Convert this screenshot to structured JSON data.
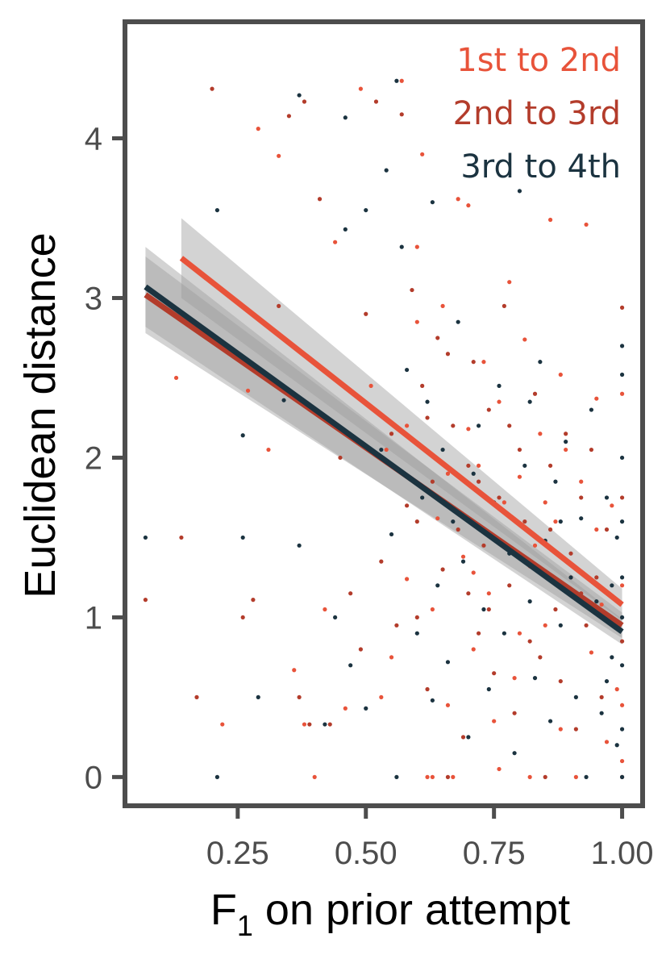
{
  "chart_data": {
    "type": "scatter",
    "xlabel": "F",
    "xlabel_subscript": "1",
    "xlabel_rest": " on prior attempt",
    "ylabel": "Euclidean distance",
    "xlim": [
      0.03,
      1.04
    ],
    "ylim": [
      -0.18,
      4.73
    ],
    "x_ticks": [
      0.25,
      0.5,
      0.75,
      1.0
    ],
    "x_tick_labels": [
      "0.25",
      "0.50",
      "0.75",
      "1.00"
    ],
    "y_ticks": [
      0,
      1,
      2,
      3,
      4
    ],
    "y_tick_labels": [
      "0",
      "1",
      "2",
      "3",
      "4"
    ],
    "grid": false,
    "legend_placement": "top-right",
    "series": [
      {
        "name": "1st to 2nd",
        "color": "#e8533a",
        "fit": {
          "x": [
            0.14,
            1.0
          ],
          "y": [
            3.25,
            1.08
          ],
          "ci_low": [
            3.0,
            0.98
          ],
          "ci_high": [
            3.5,
            1.18
          ]
        },
        "points": [
          [
            0.13,
            2.5
          ],
          [
            0.22,
            0.33
          ],
          [
            0.27,
            2.42
          ],
          [
            0.29,
            4.06
          ],
          [
            0.31,
            2.05
          ],
          [
            0.33,
            3.89
          ],
          [
            0.36,
            0.67
          ],
          [
            0.38,
            0.33
          ],
          [
            0.4,
            0.0
          ],
          [
            0.42,
            1.05
          ],
          [
            0.44,
            3.35
          ],
          [
            0.46,
            0.43
          ],
          [
            0.49,
            4.31
          ],
          [
            0.51,
            2.45
          ],
          [
            0.53,
            0.5
          ],
          [
            0.55,
            0.75
          ],
          [
            0.57,
            4.36
          ],
          [
            0.58,
            1.24
          ],
          [
            0.6,
            2.85
          ],
          [
            0.61,
            3.9
          ],
          [
            0.62,
            0.0
          ],
          [
            0.63,
            0.0
          ],
          [
            0.64,
            1.62
          ],
          [
            0.65,
            2.95
          ],
          [
            0.66,
            0.45
          ],
          [
            0.67,
            0.0
          ],
          [
            0.68,
            3.62
          ],
          [
            0.69,
            1.38
          ],
          [
            0.7,
            2.18
          ],
          [
            0.71,
            0.8
          ],
          [
            0.72,
            1.95
          ],
          [
            0.73,
            2.6
          ],
          [
            0.74,
            1.15
          ],
          [
            0.75,
            0.35
          ],
          [
            0.76,
            2.35
          ],
          [
            0.77,
            1.72
          ],
          [
            0.78,
            3.1
          ],
          [
            0.79,
            0.62
          ],
          [
            0.8,
            1.88
          ],
          [
            0.81,
            2.74
          ],
          [
            0.82,
            0.0
          ],
          [
            0.83,
            1.45
          ],
          [
            0.84,
            2.15
          ],
          [
            0.85,
            0.95
          ],
          [
            0.86,
            3.49
          ],
          [
            0.87,
            1.6
          ],
          [
            0.88,
            0.3
          ],
          [
            0.89,
            2.05
          ],
          [
            0.9,
            1.25
          ],
          [
            0.91,
            0.0
          ],
          [
            0.92,
            1.85
          ],
          [
            0.93,
            3.46
          ],
          [
            0.94,
            0.78
          ],
          [
            0.95,
            2.37
          ],
          [
            0.96,
            1.08
          ],
          [
            0.97,
            0.22
          ],
          [
            0.98,
            1.7
          ],
          [
            0.99,
            0.55
          ],
          [
            1.0,
            2.4
          ],
          [
            1.0,
            1.2
          ],
          [
            1.0,
            0.45
          ],
          [
            1.0,
            0.1
          ],
          [
            0.58,
            2.2
          ],
          [
            0.66,
            1.9
          ],
          [
            0.74,
            1.52
          ],
          [
            0.82,
            1.32
          ],
          [
            0.54,
            2.05
          ],
          [
            0.7,
            3.58
          ],
          [
            0.6,
            3.32
          ],
          [
            0.76,
            0.05
          ],
          [
            0.85,
            1.72
          ],
          [
            0.95,
            1.55
          ],
          [
            0.63,
            1.05
          ],
          [
            0.88,
            2.52
          ],
          [
            0.71,
            1.28
          ],
          [
            0.8,
            0.9
          ]
        ]
      },
      {
        "name": "2nd to 3rd",
        "color": "#b33c2b",
        "fit": {
          "x": [
            0.07,
            1.0
          ],
          "y": [
            3.02,
            0.95
          ],
          "ci_low": [
            2.78,
            0.87
          ],
          "ci_high": [
            3.26,
            1.03
          ]
        },
        "points": [
          [
            0.07,
            1.11
          ],
          [
            0.14,
            1.5
          ],
          [
            0.17,
            0.5
          ],
          [
            0.2,
            4.31
          ],
          [
            0.26,
            1.0
          ],
          [
            0.28,
            1.11
          ],
          [
            0.33,
            2.95
          ],
          [
            0.35,
            4.14
          ],
          [
            0.37,
            0.5
          ],
          [
            0.38,
            4.23
          ],
          [
            0.39,
            0.33
          ],
          [
            0.41,
            3.62
          ],
          [
            0.43,
            0.33
          ],
          [
            0.45,
            2.0
          ],
          [
            0.47,
            1.15
          ],
          [
            0.49,
            0.8
          ],
          [
            0.5,
            2.9
          ],
          [
            0.52,
            4.23
          ],
          [
            0.53,
            1.35
          ],
          [
            0.55,
            2.15
          ],
          [
            0.56,
            0.95
          ],
          [
            0.57,
            4.15
          ],
          [
            0.58,
            1.7
          ],
          [
            0.59,
            3.05
          ],
          [
            0.6,
            1.0
          ],
          [
            0.61,
            2.45
          ],
          [
            0.62,
            0.55
          ],
          [
            0.63,
            1.85
          ],
          [
            0.64,
            2.75
          ],
          [
            0.65,
            1.3
          ],
          [
            0.66,
            0.0
          ],
          [
            0.67,
            2.2
          ],
          [
            0.68,
            1.55
          ],
          [
            0.69,
            0.25
          ],
          [
            0.7,
            1.95
          ],
          [
            0.71,
            2.6
          ],
          [
            0.72,
            0.9
          ],
          [
            0.73,
            1.45
          ],
          [
            0.74,
            2.3
          ],
          [
            0.75,
            0.65
          ],
          [
            0.76,
            1.75
          ],
          [
            0.77,
            2.95
          ],
          [
            0.78,
            1.2
          ],
          [
            0.79,
            0.4
          ],
          [
            0.8,
            2.05
          ],
          [
            0.81,
            1.6
          ],
          [
            0.82,
            0.85
          ],
          [
            0.83,
            2.4
          ],
          [
            0.84,
            1.3
          ],
          [
            0.85,
            0.0
          ],
          [
            0.86,
            1.95
          ],
          [
            0.87,
            1.05
          ],
          [
            0.88,
            0.6
          ],
          [
            0.89,
            2.15
          ],
          [
            0.9,
            1.4
          ],
          [
            0.91,
            0.3
          ],
          [
            0.92,
            1.75
          ],
          [
            0.93,
            0.95
          ],
          [
            0.94,
            2.05
          ],
          [
            0.95,
            1.25
          ],
          [
            0.96,
            0.5
          ],
          [
            0.97,
            1.55
          ],
          [
            1.0,
            2.94
          ],
          [
            1.0,
            1.75
          ],
          [
            1.0,
            0.85
          ],
          [
            1.0,
            0.0
          ],
          [
            0.62,
            2.25
          ],
          [
            0.72,
            1.85
          ],
          [
            0.6,
            1.6
          ],
          [
            0.7,
            1.15
          ],
          [
            0.78,
            2.2
          ],
          [
            0.86,
            1.55
          ],
          [
            0.66,
            2.65
          ],
          [
            0.74,
            1.05
          ],
          [
            0.84,
            0.75
          ],
          [
            0.92,
            1.15
          ]
        ]
      },
      {
        "name": "3rd to 4th",
        "color": "#1b3340",
        "fit": {
          "x": [
            0.07,
            1.0
          ],
          "y": [
            3.07,
            0.91
          ],
          "ci_low": [
            2.82,
            0.83
          ],
          "ci_high": [
            3.32,
            0.99
          ]
        },
        "points": [
          [
            0.07,
            1.5
          ],
          [
            0.21,
            0.0
          ],
          [
            0.21,
            3.55
          ],
          [
            0.26,
            1.5
          ],
          [
            0.26,
            2.14
          ],
          [
            0.29,
            0.5
          ],
          [
            0.34,
            2.36
          ],
          [
            0.37,
            4.27
          ],
          [
            0.37,
            1.45
          ],
          [
            0.42,
            0.33
          ],
          [
            0.44,
            1.0
          ],
          [
            0.46,
            4.13
          ],
          [
            0.46,
            3.43
          ],
          [
            0.47,
            0.7
          ],
          [
            0.5,
            3.55
          ],
          [
            0.5,
            0.43
          ],
          [
            0.53,
            2.05
          ],
          [
            0.54,
            3.8
          ],
          [
            0.55,
            1.52
          ],
          [
            0.56,
            4.36
          ],
          [
            0.56,
            0.0
          ],
          [
            0.57,
            3.32
          ],
          [
            0.58,
            2.55
          ],
          [
            0.6,
            0.9
          ],
          [
            0.61,
            1.75
          ],
          [
            0.62,
            2.35
          ],
          [
            0.63,
            0.48
          ],
          [
            0.64,
            1.2
          ],
          [
            0.65,
            2.05
          ],
          [
            0.66,
            0.72
          ],
          [
            0.67,
            1.6
          ],
          [
            0.68,
            2.85
          ],
          [
            0.69,
            1.35
          ],
          [
            0.7,
            0.25
          ],
          [
            0.71,
            1.9
          ],
          [
            0.72,
            2.2
          ],
          [
            0.73,
            1.05
          ],
          [
            0.74,
            0.55
          ],
          [
            0.75,
            1.72
          ],
          [
            0.76,
            2.45
          ],
          [
            0.77,
            0.9
          ],
          [
            0.78,
            1.4
          ],
          [
            0.79,
            0.15
          ],
          [
            0.8,
            3.67
          ],
          [
            0.81,
            1.95
          ],
          [
            0.82,
            1.1
          ],
          [
            0.83,
            0.62
          ],
          [
            0.84,
            2.6
          ],
          [
            0.85,
            1.48
          ],
          [
            0.86,
            0.35
          ],
          [
            0.87,
            1.85
          ],
          [
            0.88,
            0.95
          ],
          [
            0.89,
            2.1
          ],
          [
            0.9,
            1.25
          ],
          [
            0.91,
            0.5
          ],
          [
            0.92,
            1.62
          ],
          [
            0.93,
            0.0
          ],
          [
            0.94,
            2.3
          ],
          [
            0.95,
            1.1
          ],
          [
            0.96,
            0.4
          ],
          [
            0.97,
            1.75
          ],
          [
            0.98,
            0.75
          ],
          [
            1.0,
            2.7
          ],
          [
            1.0,
            2.52
          ],
          [
            1.0,
            2.0
          ],
          [
            1.0,
            1.6
          ],
          [
            1.0,
            1.25
          ],
          [
            1.0,
            1.0
          ],
          [
            1.0,
            0.7
          ],
          [
            1.0,
            0.3
          ],
          [
            1.0,
            0.0
          ],
          [
            0.99,
            1.5
          ],
          [
            0.99,
            0.2
          ],
          [
            0.98,
            1.2
          ],
          [
            0.97,
            0.6
          ],
          [
            0.63,
            3.6
          ],
          [
            0.82,
            2.35
          ],
          [
            0.88,
            1.6
          ]
        ]
      }
    ]
  }
}
